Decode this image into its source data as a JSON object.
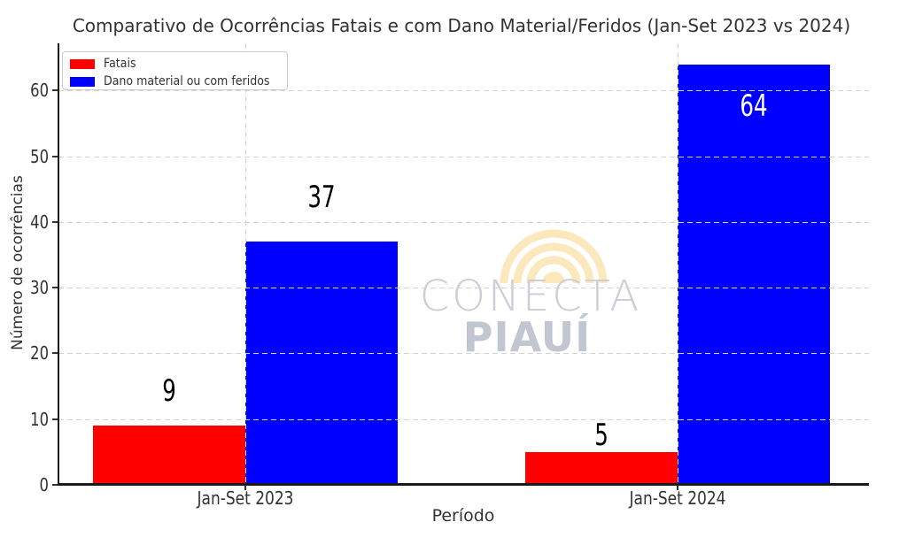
{
  "watermark": {
    "line1": "CONECTA",
    "line2": "PIAUÍ",
    "arc_color": "#fbe8bd",
    "text_color": "#c8ccd6"
  },
  "chart_data": {
    "type": "bar",
    "title": "Comparativo de Ocorrências Fatais e com Dano Material/Feridos (Jan-Set 2023 vs 2024)",
    "xlabel": "Período",
    "ylabel": "Número de ocorrências",
    "categories": [
      "Jan-Set 2023",
      "Jan-Set 2024"
    ],
    "series": [
      {
        "name": "Fatais",
        "color": "#ff0000",
        "values": [
          9,
          5
        ],
        "value_label_colors": [
          "#000000",
          "#000000"
        ]
      },
      {
        "name": "Dano material ou com feridos",
        "color": "#0000ff",
        "values": [
          37,
          64
        ],
        "value_label_colors": [
          "#000000",
          "#ffffff"
        ]
      }
    ],
    "ylim": [
      0,
      67.2
    ],
    "yticks": [
      0,
      10,
      20,
      30,
      40,
      50,
      60
    ],
    "grid": true,
    "grid_style": "dashed, horizontal and vertical, drawn above bars",
    "legend_position": "upper left",
    "value_labels_shown": true,
    "colors": {
      "axis": "#1a1a1a",
      "text": "#333333",
      "grid": "#d4d4d4",
      "background": "#ffffff"
    }
  }
}
